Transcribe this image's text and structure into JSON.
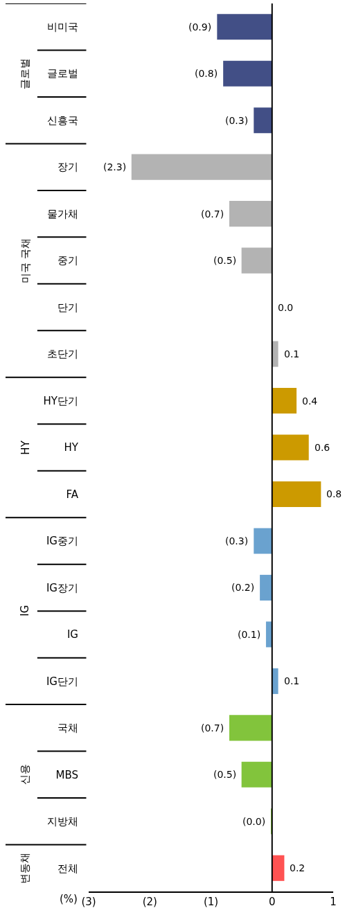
{
  "chart_data": {
    "type": "bar",
    "orientation": "horizontal",
    "xlabel": "(%)",
    "categories": [
      "비미국",
      "글로벌",
      "신흥국",
      "장기",
      "물가채",
      "중기",
      "단기",
      "초단기",
      "HY단기",
      "HY",
      "FA",
      "IG중기",
      "IG장기",
      "IG",
      "IG단기",
      "국채",
      "MBS",
      "지방채",
      "전체"
    ],
    "series": [
      {
        "color": "#424f86",
        "values": [
          -0.9,
          -0.8,
          -0.3,
          null,
          null,
          null,
          null,
          null,
          null,
          null,
          null,
          null,
          null,
          null,
          null,
          null,
          null,
          null,
          null
        ],
        "value_labels": [
          "(0.9)",
          "(0.8)",
          "(0.3)",
          null,
          null,
          null,
          null,
          null,
          null,
          null,
          null,
          null,
          null,
          null,
          null,
          null,
          null,
          null,
          null
        ]
      },
      {
        "color": "#b3b3b3",
        "values": [
          null,
          null,
          null,
          -2.3,
          -0.7,
          -0.5,
          0,
          0.1,
          null,
          null,
          null,
          null,
          null,
          null,
          null,
          null,
          null,
          null,
          null
        ],
        "value_labels": [
          null,
          null,
          null,
          "(2.3)",
          "(0.7)",
          "(0.5)",
          "0.0",
          "0.1",
          null,
          null,
          null,
          null,
          null,
          null,
          null,
          null,
          null,
          null,
          null
        ]
      },
      {
        "color": "#cc9a00",
        "values": [
          null,
          null,
          null,
          null,
          null,
          null,
          null,
          null,
          0.4,
          0.6,
          0.8,
          null,
          null,
          null,
          null,
          null,
          null,
          null,
          null
        ],
        "value_labels": [
          null,
          null,
          null,
          null,
          null,
          null,
          null,
          null,
          "0.4",
          "0.6",
          "0.8",
          null,
          null,
          null,
          null,
          null,
          null,
          null,
          null
        ]
      },
      {
        "color": "#6aa2cf",
        "values": [
          null,
          null,
          null,
          null,
          null,
          null,
          null,
          null,
          null,
          null,
          null,
          -0.3,
          -0.2,
          -0.1,
          0.1,
          null,
          null,
          null,
          null
        ],
        "value_labels": [
          null,
          null,
          null,
          null,
          null,
          null,
          null,
          null,
          null,
          null,
          null,
          "(0.3)",
          "(0.2)",
          "(0.1)",
          "0.1",
          null,
          null,
          null,
          null
        ]
      },
      {
        "color": "#82c43c",
        "values": [
          null,
          null,
          null,
          null,
          null,
          null,
          null,
          null,
          null,
          null,
          null,
          null,
          null,
          null,
          null,
          -0.7,
          -0.5,
          -0.02,
          null
        ],
        "value_labels": [
          null,
          null,
          null,
          null,
          null,
          null,
          null,
          null,
          null,
          null,
          null,
          null,
          null,
          null,
          null,
          "(0.7)",
          "(0.5)",
          "(0.0)",
          null
        ]
      },
      {
        "color": "#ff5252",
        "values": [
          null,
          null,
          null,
          null,
          null,
          null,
          null,
          null,
          null,
          null,
          null,
          null,
          null,
          null,
          null,
          null,
          null,
          null,
          0.2
        ],
        "value_labels": [
          null,
          null,
          null,
          null,
          null,
          null,
          null,
          null,
          null,
          null,
          null,
          null,
          null,
          null,
          null,
          null,
          null,
          null,
          "0.2"
        ]
      }
    ],
    "xlim": [
      -3,
      1
    ],
    "xticks": [
      {
        "value": -3,
        "label": "(3)"
      },
      {
        "value": -2,
        "label": "(2)"
      },
      {
        "value": -1,
        "label": "(1)"
      },
      0,
      1
    ],
    "ref_lines": [
      {
        "axis": "x",
        "value": 0,
        "color": "#000000"
      }
    ],
    "annotations": [
      "글로벌",
      "미국 국채",
      "HY",
      "IG",
      "신용",
      "변동채"
    ],
    "grid": false,
    "legend": false
  }
}
